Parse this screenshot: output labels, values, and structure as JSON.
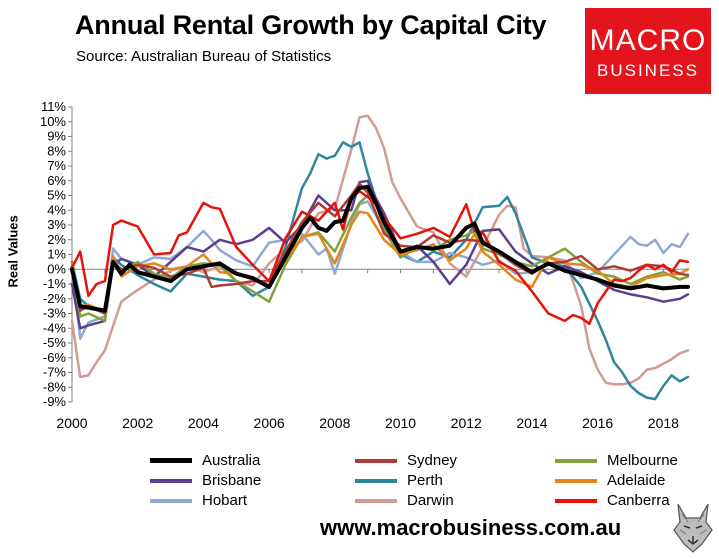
{
  "title": "Annual Rental Growth by Capital City",
  "subtitle": "Source: Australian Bureau of Statistics",
  "logo": {
    "line1": "MACRO",
    "line2": "BUSINESS"
  },
  "footer_url": "www.macrobusiness.com.au",
  "chart_data": {
    "type": "line",
    "title": "Annual Rental Growth by Capital City",
    "xlabel": "",
    "ylabel": "Real Values",
    "xlim": [
      2000,
      2018.75
    ],
    "ylim": [
      -9,
      11
    ],
    "x_ticks": [
      2000,
      2002,
      2004,
      2006,
      2008,
      2010,
      2012,
      2014,
      2016,
      2018
    ],
    "x_tick_labels": [
      "2000",
      "2002",
      "2004",
      "2006",
      "2008",
      "2010",
      "2012",
      "2014",
      "2016",
      "2018"
    ],
    "y_ticks": [
      11,
      10,
      9,
      8,
      7,
      6,
      5,
      4,
      3,
      2,
      1,
      0,
      -1,
      -2,
      -3,
      -4,
      -5,
      -6,
      -7,
      -8,
      -9
    ],
    "y_tick_labels": [
      "11%",
      "10%",
      "9%",
      "8%",
      "7%",
      "6%",
      "5%",
      "4%",
      "3%",
      "2%",
      "1%",
      "0%",
      "-1%",
      "-2%",
      "-3%",
      "-4%",
      "-5%",
      "-6%",
      "-7%",
      "-8%",
      "-9%"
    ],
    "grid": false,
    "legend_position": "bottom",
    "series": [
      {
        "name": "Australia",
        "color": "#000000",
        "width": 4,
        "x": [
          2000,
          2000.25,
          2000.5,
          2000.75,
          2001,
          2001.25,
          2001.5,
          2001.75,
          2002,
          2002.5,
          2003,
          2003.5,
          2004,
          2004.5,
          2005,
          2005.5,
          2006,
          2006.5,
          2007,
          2007.25,
          2007.5,
          2007.75,
          2008,
          2008.25,
          2008.5,
          2008.75,
          2009,
          2009.25,
          2009.5,
          2010,
          2010.5,
          2011,
          2011.5,
          2012,
          2012.25,
          2012.5,
          2013,
          2013.5,
          2014,
          2014.5,
          2015,
          2015.5,
          2016,
          2016.5,
          2017,
          2017.5,
          2018,
          2018.5,
          2018.75
        ],
        "y": [
          0,
          -2.5,
          -2.6,
          -2.7,
          -2.8,
          0.5,
          -0.3,
          0.3,
          -0.2,
          -0.5,
          -0.8,
          0,
          0.2,
          0.4,
          -0.3,
          -0.6,
          -1.2,
          0.8,
          2.8,
          3.5,
          2.8,
          2.6,
          3.2,
          3.3,
          4.8,
          5.5,
          5.6,
          4.5,
          3.2,
          1.2,
          1.5,
          1.4,
          1.6,
          2.8,
          3.1,
          1.8,
          1.2,
          0.5,
          -0.2,
          0.4,
          -0.1,
          -0.4,
          -0.7,
          -1.1,
          -1.3,
          -1.1,
          -1.3,
          -1.2,
          -1.2
        ]
      },
      {
        "name": "Sydney",
        "color": "#b03a36",
        "width": 2.5,
        "x": [
          2000,
          2000.25,
          2000.5,
          2001,
          2001.25,
          2001.5,
          2002,
          2002.5,
          2003,
          2003.5,
          2004,
          2004.25,
          2004.5,
          2005,
          2005.5,
          2006,
          2006.5,
          2007,
          2007.5,
          2008,
          2008.5,
          2008.75,
          2009,
          2009.5,
          2010,
          2010.5,
          2011,
          2011.5,
          2012,
          2012.5,
          2013,
          2013.5,
          2014,
          2014.5,
          2015,
          2015.5,
          2016,
          2016.5,
          2017,
          2017.5,
          2018,
          2018.5,
          2018.75
        ],
        "y": [
          0.2,
          -2.8,
          -2.5,
          -3,
          0.5,
          0,
          0.3,
          0.1,
          -0.5,
          -0.3,
          0.1,
          -1.2,
          -1.1,
          -1,
          -0.8,
          -0.8,
          1.2,
          3.2,
          4.5,
          3.6,
          5,
          5.8,
          5.2,
          2.4,
          1.6,
          1.5,
          2.3,
          1.8,
          2,
          1.9,
          1.1,
          0.3,
          -0.3,
          0.4,
          0.5,
          0.9,
          0,
          0.2,
          -0.1,
          0.3,
          0.2,
          -0.3,
          -0.4
        ]
      },
      {
        "name": "Melbourne",
        "color": "#7fa33a",
        "width": 2.5,
        "x": [
          2000,
          2000.25,
          2000.5,
          2001,
          2001.25,
          2001.5,
          2002,
          2002.5,
          2003,
          2003.5,
          2004,
          2004.5,
          2005,
          2005.5,
          2006,
          2006.5,
          2007,
          2007.5,
          2008,
          2008.5,
          2008.75,
          2009,
          2009.25,
          2009.5,
          2010,
          2010.5,
          2011,
          2011.5,
          2012,
          2012.25,
          2012.5,
          2013,
          2013.5,
          2014,
          2014.5,
          2015,
          2015.5,
          2016,
          2016.5,
          2017,
          2017.5,
          2018,
          2018.5,
          2018.75
        ],
        "y": [
          0.3,
          -3.2,
          -3,
          -3.5,
          0.8,
          -0.2,
          0.5,
          -0.3,
          -0.6,
          0.2,
          0.4,
          0.3,
          -0.8,
          -1.5,
          -2.2,
          0.3,
          2.2,
          2.5,
          1.2,
          3.5,
          4.5,
          5,
          4.5,
          2.7,
          0.8,
          1.5,
          1.3,
          2,
          2.3,
          2.6,
          1.4,
          1,
          0.5,
          0.2,
          0.8,
          1.4,
          0.5,
          -0.3,
          -0.5,
          -1,
          -0.5,
          -0.2,
          -0.7,
          -0.5
        ]
      },
      {
        "name": "Brisbane",
        "color": "#5b3e8c",
        "width": 2.5,
        "x": [
          2000,
          2000.25,
          2000.5,
          2001,
          2001.25,
          2001.5,
          2002,
          2002.5,
          2003,
          2003.5,
          2004,
          2004.5,
          2005,
          2005.5,
          2006,
          2006.5,
          2007,
          2007.5,
          2008,
          2008.5,
          2008.75,
          2009,
          2009.25,
          2009.5,
          2010,
          2010.5,
          2011,
          2011.5,
          2012,
          2012.5,
          2013,
          2013.5,
          2014,
          2014.5,
          2015,
          2015.5,
          2016,
          2016.5,
          2017,
          2017.5,
          2018,
          2018.5,
          2018.75
        ],
        "y": [
          -1,
          -4,
          -3.8,
          -3.5,
          0.3,
          0.7,
          0.3,
          -0.5,
          0.5,
          1.5,
          1.2,
          2,
          1.7,
          2,
          2.8,
          1.8,
          3,
          5,
          4,
          4,
          5.9,
          6,
          4.8,
          3.8,
          1.2,
          1.6,
          0.5,
          -1,
          0.3,
          2.6,
          2.7,
          1.2,
          0.4,
          -0.3,
          0.2,
          -0.2,
          -0.8,
          -1.4,
          -1.7,
          -1.9,
          -2.2,
          -2,
          -1.7
        ]
      },
      {
        "name": "Perth",
        "color": "#2e86a0",
        "width": 2.5,
        "x": [
          2000,
          2000.25,
          2000.5,
          2001,
          2001.25,
          2001.5,
          2002,
          2002.5,
          2003,
          2003.5,
          2004,
          2004.5,
          2005,
          2005.5,
          2006,
          2006.5,
          2007,
          2007.25,
          2007.5,
          2007.75,
          2008,
          2008.25,
          2008.5,
          2008.75,
          2009,
          2009.5,
          2010,
          2010.5,
          2011,
          2011.5,
          2012,
          2012.5,
          2013,
          2013.25,
          2013.5,
          2014,
          2014.5,
          2015,
          2015.5,
          2016,
          2016.25,
          2016.5,
          2016.75,
          2017,
          2017.25,
          2017.5,
          2017.75,
          2018,
          2018.25,
          2018.5,
          2018.75
        ],
        "y": [
          0.5,
          -2,
          -2.5,
          -3,
          0.8,
          0.3,
          -0.4,
          -1,
          -1.5,
          -0.3,
          -0.5,
          -0.7,
          -0.8,
          -1.8,
          -1.2,
          1.5,
          5.5,
          6.5,
          7.8,
          7.5,
          7.7,
          8.6,
          8.3,
          8.6,
          6.5,
          3,
          1,
          0.5,
          1.2,
          0.8,
          2,
          4.2,
          4.3,
          4.9,
          3.8,
          0.8,
          0.4,
          0.2,
          -1.2,
          -3.5,
          -4.8,
          -6.3,
          -7,
          -7.9,
          -8.4,
          -8.7,
          -8.8,
          -7.9,
          -7.2,
          -7.6,
          -7.3
        ]
      },
      {
        "name": "Adelaide",
        "color": "#e5861b",
        "width": 2.5,
        "x": [
          2000,
          2000.25,
          2000.5,
          2001,
          2001.25,
          2001.5,
          2002,
          2002.5,
          2003,
          2003.5,
          2004,
          2004.5,
          2005,
          2005.5,
          2006,
          2006.5,
          2007,
          2007.5,
          2008,
          2008.5,
          2008.75,
          2009,
          2009.5,
          2010,
          2010.5,
          2011,
          2011.5,
          2012,
          2012.25,
          2012.5,
          2013,
          2013.5,
          2014,
          2014.5,
          2015,
          2015.5,
          2016,
          2016.5,
          2017,
          2017.5,
          2018,
          2018.5,
          2018.75
        ],
        "y": [
          0.4,
          -2.7,
          -2.4,
          -2.9,
          0.9,
          -0.5,
          0.2,
          0.4,
          0,
          0.2,
          1,
          -0.2,
          -0.3,
          -0.7,
          -1.1,
          0.6,
          2.2,
          2.4,
          0.4,
          3,
          3.9,
          3.8,
          2,
          1,
          1.3,
          1.7,
          0.6,
          1.4,
          2.4,
          1.2,
          0.3,
          -0.7,
          -1.2,
          0.8,
          0.4,
          0.3,
          -0.1,
          -1,
          -1.2,
          -0.6,
          -0.4,
          -0.3,
          0
        ]
      },
      {
        "name": "Hobart",
        "color": "#8fa8d4",
        "width": 2.5,
        "x": [
          2000,
          2000.25,
          2000.5,
          2001,
          2001.25,
          2001.5,
          2002,
          2002.5,
          2003,
          2003.5,
          2004,
          2004.25,
          2004.5,
          2005,
          2005.5,
          2006,
          2006.5,
          2007,
          2007.5,
          2007.75,
          2008,
          2008.5,
          2008.75,
          2009,
          2009.5,
          2010,
          2010.5,
          2011,
          2011.5,
          2012,
          2012.5,
          2013,
          2013.5,
          2014,
          2014.5,
          2015,
          2015.5,
          2016,
          2016.5,
          2017,
          2017.25,
          2017.5,
          2017.75,
          2018,
          2018.25,
          2018.5,
          2018.75
        ],
        "y": [
          0.2,
          -4.7,
          -3.6,
          -3.2,
          1.4,
          0.7,
          0.3,
          0.8,
          0.7,
          1.5,
          2.6,
          2,
          1.3,
          0.6,
          0.2,
          1.8,
          2,
          2.4,
          1,
          1.4,
          -0.3,
          3.1,
          4.4,
          4.6,
          2.7,
          1.2,
          0.5,
          0.5,
          1.1,
          0.8,
          0.3,
          0.6,
          -0.3,
          -0.2,
          0.3,
          0.5,
          -0.6,
          -0.2,
          1,
          2.2,
          1.7,
          1.6,
          2,
          1.1,
          1.7,
          1.5,
          2.4
        ]
      },
      {
        "name": "Darwin",
        "color": "#d49a95",
        "width": 2.5,
        "x": [
          2000,
          2000.25,
          2000.5,
          2000.75,
          2001,
          2001.5,
          2002,
          2002.5,
          2003,
          2003.5,
          2004,
          2004.5,
          2005,
          2005.5,
          2006,
          2006.5,
          2007,
          2007.5,
          2008,
          2008.5,
          2008.75,
          2009,
          2009.25,
          2009.5,
          2009.75,
          2010,
          2010.5,
          2011,
          2011.5,
          2012,
          2012.5,
          2013,
          2013.25,
          2013.5,
          2013.75,
          2014,
          2014.5,
          2015,
          2015.25,
          2015.5,
          2015.75,
          2016,
          2016.25,
          2016.5,
          2016.75,
          2017,
          2017.25,
          2017.5,
          2017.75,
          2018,
          2018.25,
          2018.5,
          2018.75
        ],
        "y": [
          -3.5,
          -7.3,
          -7.2,
          -6.3,
          -5.5,
          -2.2,
          -1.4,
          -0.7,
          -0.1,
          0.2,
          -0.2,
          0.2,
          -0.8,
          -1.1,
          0.4,
          1.4,
          1.9,
          3.8,
          4.1,
          8.1,
          10.3,
          10.4,
          9.6,
          8.2,
          5.9,
          4.8,
          2.9,
          2.5,
          0.4,
          -0.5,
          1.5,
          3.7,
          4.3,
          4.2,
          1.4,
          0.9,
          0.8,
          0.6,
          -0.8,
          -2.5,
          -5.4,
          -6.8,
          -7.7,
          -7.8,
          -7.8,
          -7.7,
          -7.4,
          -6.8,
          -6.7,
          -6.4,
          -6.1,
          -5.7,
          -5.5
        ]
      },
      {
        "name": "Canberra",
        "color": "#e8120a",
        "width": 2.5,
        "x": [
          2000,
          2000.25,
          2000.5,
          2000.75,
          2001,
          2001.25,
          2001.5,
          2002,
          2002.5,
          2003,
          2003.25,
          2003.5,
          2004,
          2004.25,
          2004.5,
          2005,
          2005.5,
          2006,
          2006.5,
          2007,
          2007.5,
          2008,
          2008.25,
          2008.5,
          2008.75,
          2009,
          2009.25,
          2009.5,
          2010,
          2010.5,
          2011,
          2011.5,
          2012,
          2012.25,
          2012.5,
          2013,
          2013.5,
          2014,
          2014.5,
          2015,
          2015.25,
          2015.5,
          2015.75,
          2016,
          2016.25,
          2016.5,
          2016.75,
          2017,
          2017.25,
          2017.5,
          2017.75,
          2018,
          2018.25,
          2018.5,
          2018.75
        ],
        "y": [
          0.1,
          1.2,
          -1.8,
          -1,
          -0.8,
          3,
          3.3,
          2.9,
          1,
          1.1,
          2.3,
          2.5,
          4.5,
          4.2,
          4.1,
          1.5,
          0.3,
          -0.8,
          2.1,
          3.9,
          3.3,
          4.5,
          2.7,
          4.8,
          5.3,
          4.9,
          4.4,
          3.5,
          2.1,
          2.4,
          2.8,
          2.2,
          4.4,
          2.6,
          2.5,
          0.5,
          -0.1,
          -1.5,
          -3,
          -3.5,
          -3.1,
          -3.3,
          -3.7,
          -2.3,
          -1.5,
          -0.7,
          -0.8,
          -0.6,
          -0.1,
          0.3,
          0,
          0.3,
          -0.2,
          0.6,
          0.5
        ]
      }
    ]
  }
}
